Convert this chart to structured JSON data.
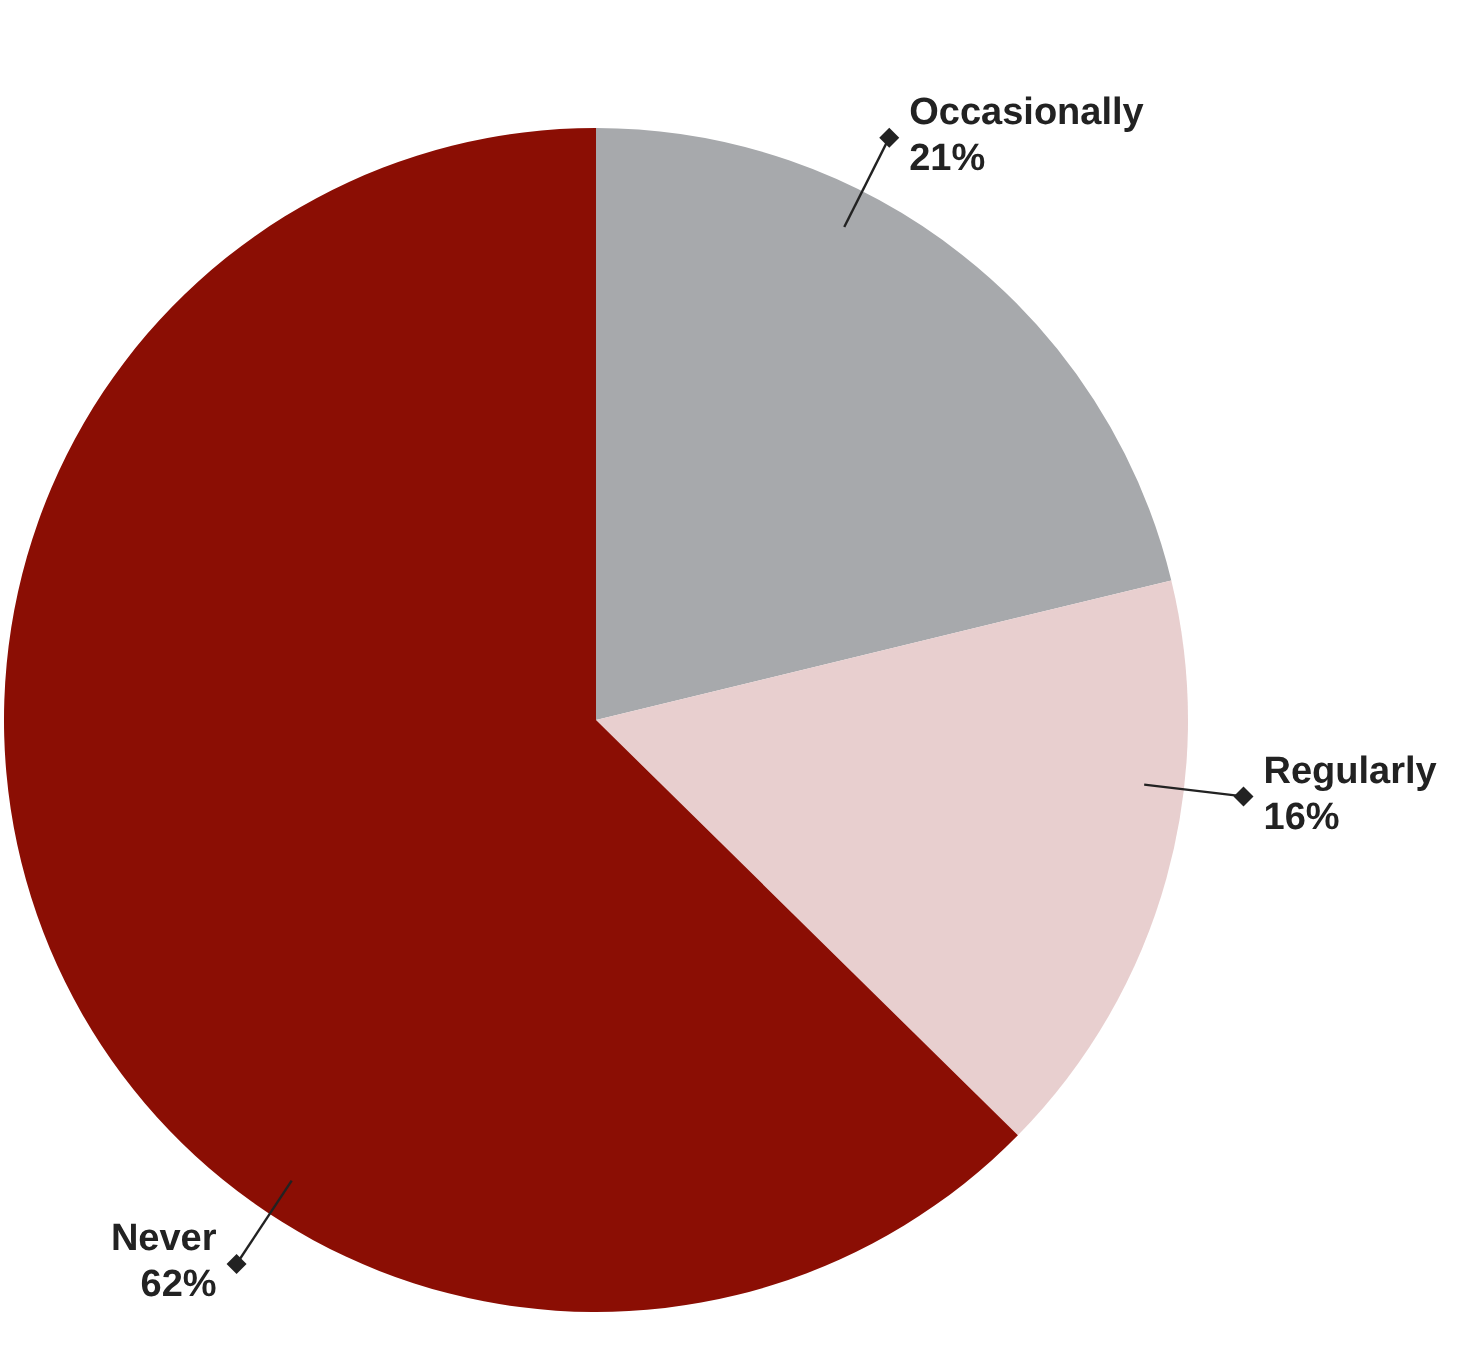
{
  "chart_data": {
    "type": "pie",
    "categories": [
      "Occasionally",
      "Regularly",
      "Never"
    ],
    "values": [
      21,
      16,
      62
    ],
    "colors": [
      "#a7a9ac",
      "#e8cfcf",
      "#8b0e04"
    ],
    "value_labels": [
      "21%",
      "16%",
      "62%"
    ],
    "legend": false
  }
}
